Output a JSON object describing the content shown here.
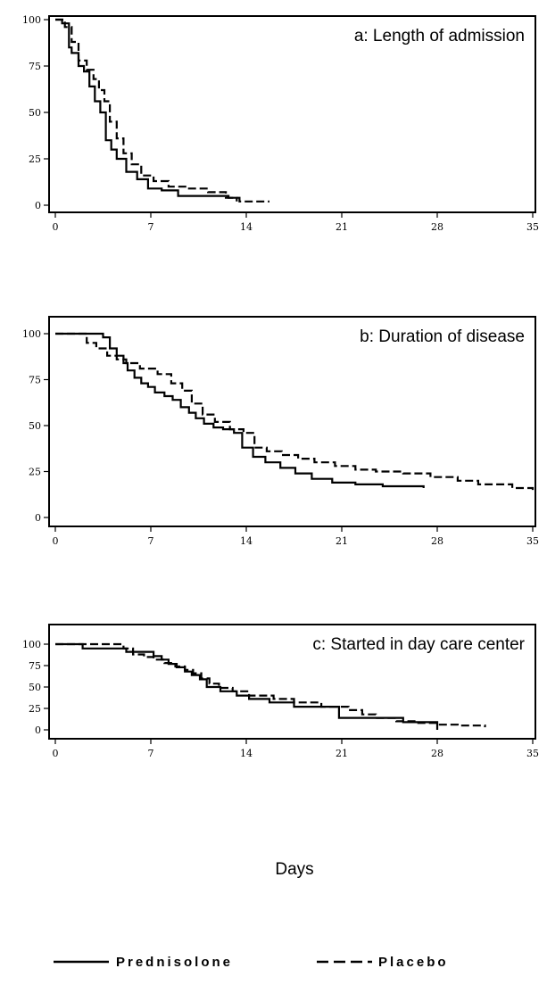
{
  "figure": {
    "xlabel": "Days",
    "legend": [
      {
        "name": "Prednisolone",
        "style": "solid"
      },
      {
        "name": "Placebo",
        "style": "dashed"
      }
    ]
  },
  "chart_data": [
    {
      "type": "line",
      "title": "a: Length of admission",
      "xlim": [
        0,
        35
      ],
      "ylim": [
        0,
        100
      ],
      "xticks": [
        "0",
        "7",
        "14",
        "21",
        "28",
        "35"
      ],
      "yticks": [
        "0",
        "25",
        "50",
        "75",
        "100"
      ],
      "grid": false,
      "series": [
        {
          "name": "Prednisolone",
          "style": "solid",
          "x": [
            0,
            0.5,
            1,
            1.2,
            1.7,
            2.1,
            2.5,
            2.9,
            3.3,
            3.7,
            4.1,
            4.5,
            5.2,
            6,
            6.8,
            7.8,
            9,
            10.5,
            12.7,
            13.3
          ],
          "y": [
            100,
            98,
            85,
            82,
            75,
            72,
            64,
            56,
            50,
            35,
            30,
            25,
            18,
            14,
            9,
            8,
            5,
            5,
            4,
            2
          ]
        },
        {
          "name": "Placebo",
          "style": "dashed",
          "x": [
            0,
            0.7,
            1.2,
            1.7,
            2.3,
            2.8,
            3.2,
            3.6,
            4,
            4.5,
            5,
            5.6,
            6.3,
            7.2,
            8.3,
            9.8,
            11.2,
            12.5,
            13.5,
            15.7
          ],
          "y": [
            100,
            96,
            88,
            78,
            73,
            68,
            62,
            56,
            45,
            36,
            28,
            22,
            16,
            13,
            10,
            9,
            7,
            4,
            2,
            2
          ]
        }
      ]
    },
    {
      "type": "line",
      "title": "b: Duration of disease",
      "xlim": [
        0,
        35
      ],
      "ylim": [
        0,
        100
      ],
      "xticks": [
        "0",
        "7",
        "14",
        "21",
        "28",
        "35"
      ],
      "yticks": [
        "0",
        "25",
        "50",
        "75",
        "100"
      ],
      "grid": false,
      "series": [
        {
          "name": "Prednisolone",
          "style": "solid",
          "x": [
            0,
            3.5,
            4,
            4.5,
            5,
            5.3,
            5.8,
            6.3,
            6.8,
            7.3,
            8,
            8.6,
            9.2,
            9.8,
            10.3,
            10.9,
            11.6,
            12.3,
            13.1,
            13.7,
            14.5,
            15.4,
            16.5,
            17.6,
            18.8,
            20.3,
            22,
            24,
            27
          ],
          "y": [
            100,
            98,
            92,
            88,
            84,
            80,
            76,
            73,
            71,
            68,
            66,
            64,
            60,
            57,
            54,
            51,
            49,
            48,
            46,
            38,
            33,
            30,
            27,
            24,
            21,
            19,
            18,
            17,
            16
          ]
        },
        {
          "name": "Placebo",
          "style": "dashed",
          "x": [
            0,
            2.3,
            3,
            3.8,
            4.5,
            5.2,
            6.2,
            7.5,
            8.5,
            9.3,
            10,
            10.8,
            11.7,
            12.8,
            13.8,
            14.6,
            15.5,
            16.6,
            17.8,
            19,
            20.5,
            22,
            23.5,
            25.5,
            27.5,
            29.5,
            31,
            33.5,
            35
          ],
          "y": [
            100,
            95,
            92,
            88,
            86,
            84,
            81,
            78,
            73,
            69,
            62,
            56,
            52,
            48,
            46,
            38,
            36,
            34,
            32,
            30,
            28,
            26,
            25,
            24,
            22,
            20,
            18,
            16,
            15
          ]
        }
      ]
    },
    {
      "type": "line",
      "title": "c: Started in day care center",
      "xlim": [
        0,
        35
      ],
      "ylim": [
        0,
        100
      ],
      "xticks": [
        "0",
        "7",
        "14",
        "21",
        "28",
        "35"
      ],
      "yticks": [
        "0",
        "25",
        "50",
        "75",
        "100"
      ],
      "grid": false,
      "series": [
        {
          "name": "Prednisolone",
          "style": "solid",
          "x": [
            0,
            2,
            5.2,
            7.2,
            7.8,
            8.3,
            8.9,
            9.5,
            10,
            10.6,
            11.1,
            12.1,
            13.3,
            14.2,
            15.7,
            17.5,
            20.8,
            25.5,
            28
          ],
          "y": [
            100,
            95,
            91,
            86,
            82,
            77,
            73,
            68,
            64,
            59,
            50,
            45,
            40,
            36,
            32,
            27,
            14,
            9,
            0
          ]
        },
        {
          "name": "Placebo",
          "style": "dashed",
          "x": [
            0,
            5,
            5.7,
            6.5,
            7.2,
            8,
            8.8,
            9.5,
            10.1,
            10.7,
            11.3,
            12,
            13,
            14.2,
            16,
            17.5,
            19.5,
            21.5,
            22.5,
            23.5,
            25,
            26.5,
            28,
            29.5,
            31.5
          ],
          "y": [
            100,
            95,
            88,
            85,
            82,
            78,
            74,
            70,
            66,
            60,
            54,
            49,
            45,
            40,
            36,
            32,
            27,
            23,
            18,
            14,
            10,
            8,
            6,
            5,
            3
          ]
        }
      ]
    }
  ]
}
